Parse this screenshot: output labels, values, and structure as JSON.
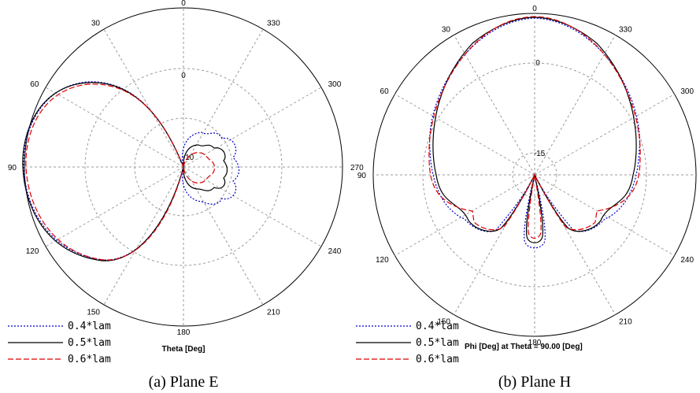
{
  "chart_data": [
    {
      "type": "polar-line",
      "caption": "(a) Plane E",
      "xlabel": "Theta [Deg]",
      "angle_labels": [
        "0",
        "30",
        "60",
        "90",
        "120",
        "150",
        "180",
        "210",
        "240",
        "270",
        "300",
        "330"
      ],
      "radial_labels": [
        "0",
        "-10"
      ],
      "series": [
        {
          "name": "0.4*lam",
          "color": "#0000cc",
          "dash": "dotted"
        },
        {
          "name": "0.5*lam",
          "color": "#000000",
          "dash": "solid"
        },
        {
          "name": "0.6*lam",
          "color": "#dd0000",
          "dash": "dashed"
        }
      ]
    },
    {
      "type": "polar-line",
      "caption": "(b) Plane H",
      "xlabel": "Phi [Deg] at Theta = 90.00 [Deg]",
      "angle_labels": [
        "0",
        "30",
        "60",
        "90",
        "120",
        "150",
        "180",
        "210",
        "240",
        "270",
        "300",
        "330"
      ],
      "radial_labels": [
        "0",
        "-15"
      ],
      "series": [
        {
          "name": "0.4*lam",
          "color": "#0000cc",
          "dash": "dotted"
        },
        {
          "name": "0.5*lam",
          "color": "#000000",
          "dash": "solid"
        },
        {
          "name": "0.6*lam",
          "color": "#dd0000",
          "dash": "dashed"
        }
      ]
    }
  ]
}
